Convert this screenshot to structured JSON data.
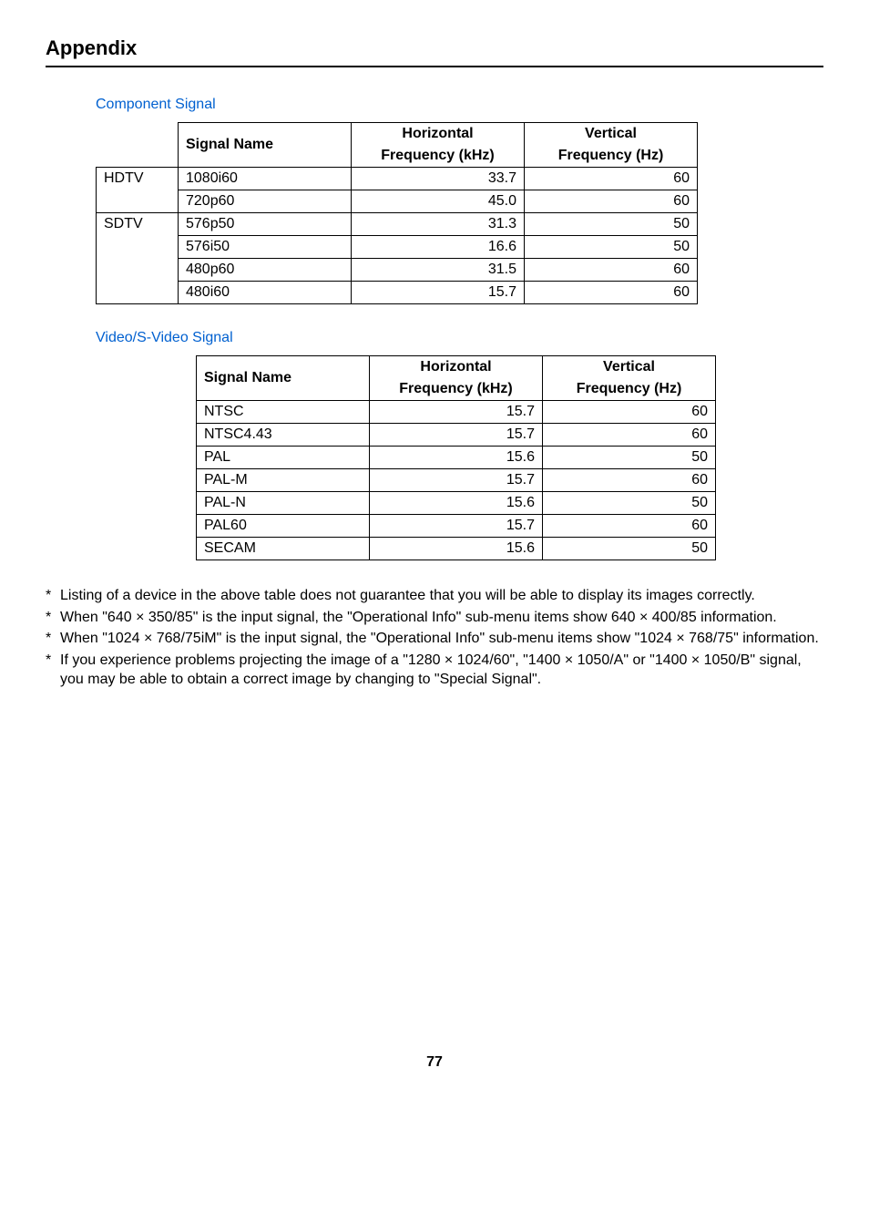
{
  "page": {
    "title": "Appendix",
    "number": "77"
  },
  "component": {
    "heading": "Component Signal",
    "headers": {
      "sig": "Signal Name",
      "h": "Horizontal",
      "h2": "Frequency (kHz)",
      "v": "Vertical",
      "v2": "Frequency (Hz)"
    },
    "groups": [
      {
        "label": "HDTV",
        "rows": [
          {
            "name": "1080i60",
            "hf": "33.7",
            "vf": "60"
          },
          {
            "name": "720p60",
            "hf": "45.0",
            "vf": "60"
          }
        ]
      },
      {
        "label": "SDTV",
        "rows": [
          {
            "name": "576p50",
            "hf": "31.3",
            "vf": "50"
          },
          {
            "name": "576i50",
            "hf": "16.6",
            "vf": "50"
          },
          {
            "name": "480p60",
            "hf": "31.5",
            "vf": "60"
          },
          {
            "name": "480i60",
            "hf": "15.7",
            "vf": "60"
          }
        ]
      }
    ]
  },
  "video": {
    "heading": "Video/S-Video Signal",
    "headers": {
      "sig": "Signal Name",
      "h": "Horizontal",
      "h2": "Frequency (kHz)",
      "v": "Vertical",
      "v2": "Frequency (Hz)"
    },
    "rows": [
      {
        "name": "NTSC",
        "hf": "15.7",
        "vf": "60"
      },
      {
        "name": "NTSC4.43",
        "hf": "15.7",
        "vf": "60"
      },
      {
        "name": "PAL",
        "hf": "15.6",
        "vf": "50"
      },
      {
        "name": "PAL-M",
        "hf": "15.7",
        "vf": "60"
      },
      {
        "name": "PAL-N",
        "hf": "15.6",
        "vf": "50"
      },
      {
        "name": "PAL60",
        "hf": "15.7",
        "vf": "60"
      },
      {
        "name": "SECAM",
        "hf": "15.6",
        "vf": "50"
      }
    ]
  },
  "notes": {
    "n1": "Listing of a device in the above table does not guarantee that you will be able to display its images correctly.",
    "n2": "When \"640 × 350/85\" is the input signal, the \"Operational Info\" sub-menu items show 640 × 400/85 information.",
    "n3": "When \"1024 × 768/75iM\" is the input signal, the \"Operational Info\" sub-menu items show \"1024 × 768/75\" information.",
    "n4": "If you experience problems projecting the image of a \"1280 × 1024/60\", \"1400 × 1050/A\" or \"1400 × 1050/B\" signal, you may be able to obtain a correct image by changing to \"Special Signal\"."
  }
}
